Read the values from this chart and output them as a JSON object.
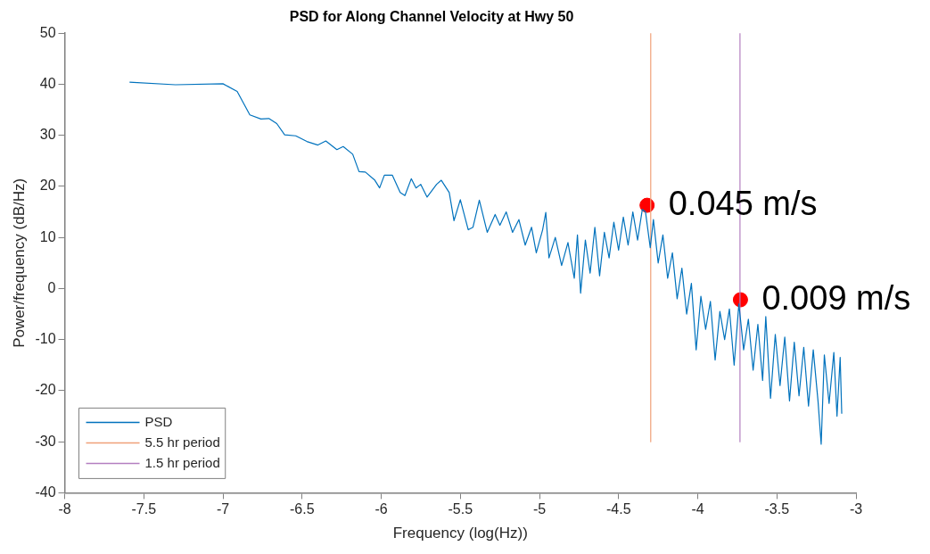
{
  "chart_data": {
    "type": "line",
    "title": "PSD for Along Channel Velocity at Hwy 50",
    "xlabel": "Frequency (log(Hz))",
    "ylabel": "Power/frequency (dB/Hz)",
    "xlim": [
      -8,
      -3
    ],
    "xticks": [
      -8,
      -7.5,
      -7,
      -6.5,
      -6,
      -5.5,
      -5,
      -4.5,
      -4,
      -3.5,
      -3
    ],
    "ylim": [
      -40,
      50
    ],
    "yticks": [
      -40,
      -30,
      -20,
      -10,
      0,
      10,
      20,
      30,
      40,
      50
    ],
    "grid": false,
    "legend": "bottom left",
    "line_style": "solid",
    "marker": "none",
    "series": [
      {
        "name": "PSD",
        "color": "#0072bd",
        "x": [
          -7.59,
          -7.3,
          -7.0,
          -6.91,
          -6.83,
          -6.76,
          -6.71,
          -6.66,
          -6.61,
          -6.54,
          -6.47,
          -6.4,
          -6.35,
          -6.28,
          -6.24,
          -6.18,
          -6.14,
          -6.1,
          -6.04,
          -6.01,
          -5.98,
          -5.93,
          -5.88,
          -5.85,
          -5.81,
          -5.78,
          -5.75,
          -5.71,
          -5.65,
          -5.62,
          -5.57,
          -5.54,
          -5.5,
          -5.45,
          -5.42,
          -5.38,
          -5.33,
          -5.28,
          -5.25,
          -5.21,
          -5.17,
          -5.13,
          -5.09,
          -5.05,
          -5.02,
          -4.98,
          -4.96,
          -4.94,
          -4.9,
          -4.86,
          -4.82,
          -4.78,
          -4.76,
          -4.74,
          -4.71,
          -4.68,
          -4.65,
          -4.62,
          -4.59,
          -4.56,
          -4.53,
          -4.5,
          -4.47,
          -4.44,
          -4.41,
          -4.38,
          -4.35,
          -4.33,
          -4.3,
          -4.28,
          -4.25,
          -4.22,
          -4.19,
          -4.16,
          -4.13,
          -4.1,
          -4.07,
          -4.04,
          -4.01,
          -3.98,
          -3.95,
          -3.92,
          -3.89,
          -3.86,
          -3.83,
          -3.8,
          -3.77,
          -3.74,
          -3.71,
          -3.68,
          -3.65,
          -3.62,
          -3.59,
          -3.57,
          -3.54,
          -3.51,
          -3.48,
          -3.45,
          -3.42,
          -3.39,
          -3.36,
          -3.33,
          -3.3,
          -3.27,
          -3.24,
          -3.22,
          -3.2,
          -3.17,
          -3.14,
          -3.12,
          -3.1,
          -3.09
        ],
        "values": [
          40.4,
          39.9,
          40.1,
          38.6,
          34.0,
          33.2,
          33.3,
          32.3,
          30.1,
          29.9,
          28.8,
          28.1,
          28.9,
          27.2,
          27.8,
          26.3,
          22.9,
          22.8,
          21.2,
          19.7,
          22.2,
          22.2,
          18.8,
          18.2,
          21.5,
          19.7,
          20.4,
          17.9,
          20.4,
          21.2,
          18.8,
          13.3,
          17.4,
          11.5,
          12.0,
          17.3,
          11.0,
          14.5,
          12.4,
          15.0,
          11.0,
          13.5,
          8.5,
          12.0,
          7.0,
          11.5,
          14.9,
          6.0,
          10.0,
          4.5,
          9.0,
          2.0,
          10.5,
          -0.9,
          9.5,
          3.0,
          12.0,
          2.5,
          11.0,
          6.0,
          13.0,
          7.5,
          14.0,
          8.5,
          15.0,
          9.5,
          15.5,
          15.0,
          8.0,
          13.5,
          5.0,
          10.5,
          2.0,
          7.0,
          -2.0,
          4.0,
          -5.0,
          1.0,
          -12.0,
          -1.5,
          -8.0,
          -2.5,
          -14.0,
          -4.5,
          -10.0,
          -4.0,
          -15.0,
          -3.0,
          -12.0,
          -6.0,
          -16.0,
          -7.0,
          -18.0,
          -5.5,
          -21.5,
          -9.0,
          -19.0,
          -9.5,
          -22.0,
          -10.5,
          -21.0,
          -11.5,
          -23.0,
          -12.0,
          -22.0,
          -30.5,
          -13.0,
          -22.5,
          -12.5,
          -25.0,
          -13.5,
          -24.5
        ]
      },
      {
        "name": "5.5 hr period",
        "color": "#f0a078",
        "x": [
          -4.297,
          -4.297
        ],
        "values": [
          50,
          -30
        ]
      },
      {
        "name": "1.5 hr period",
        "color": "#b47fc0",
        "x": [
          -3.733,
          -3.733
        ],
        "values": [
          50,
          -30
        ]
      },
      {
        "type": "scatter",
        "color": "#ff0000",
        "marker": "circle",
        "x": [
          -4.32,
          -3.73
        ],
        "values": [
          16.3,
          -2.2
        ]
      }
    ],
    "annotations": [
      {
        "text": "0.045 m/s",
        "x": -4.32,
        "y": 16.3
      },
      {
        "text": "0.009 m/s",
        "x": -3.73,
        "y": -2.2
      }
    ]
  }
}
